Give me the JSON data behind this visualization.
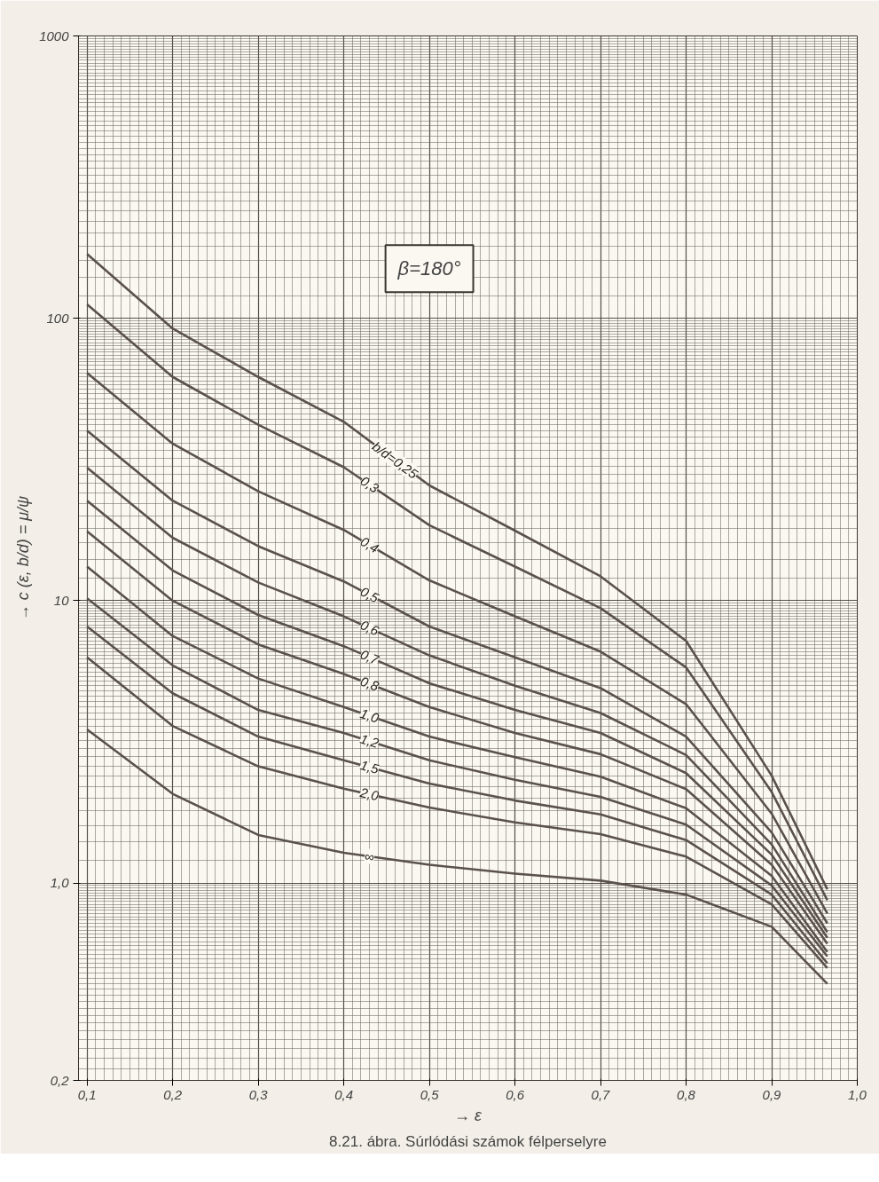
{
  "chart_data": {
    "type": "line",
    "xlabel": "→ ε",
    "ylabel": "→ c (ε, b/d) = μ/ψ",
    "log": "y",
    "grid": true,
    "x": [
      0.1,
      0.2,
      0.3,
      0.4,
      0.5,
      0.6,
      0.7,
      0.8,
      0.9,
      0.965
    ],
    "series": [
      {
        "name": "b/d=0,25",
        "color": "#5a524a",
        "values": [
          169,
          92,
          62,
          43,
          25.6,
          17.7,
          12.2,
          7.2,
          2.4,
          0.95
        ]
      },
      {
        "name": "0,3",
        "color": "#5a524a",
        "values": [
          112,
          62,
          42,
          29.7,
          18.5,
          13.2,
          9.4,
          5.8,
          2.1,
          0.87
        ]
      },
      {
        "name": "0,4",
        "color": "#5a524a",
        "values": [
          64,
          36,
          24.4,
          17.8,
          11.8,
          8.8,
          6.6,
          4.3,
          1.76,
          0.78
        ]
      },
      {
        "name": "0,5",
        "color": "#5a524a",
        "values": [
          40,
          22.6,
          15.6,
          11.7,
          8.1,
          6.3,
          4.9,
          3.3,
          1.51,
          0.72
        ]
      },
      {
        "name": "0,6",
        "color": "#5a524a",
        "values": [
          29.6,
          16.7,
          11.6,
          8.8,
          6.4,
          5.0,
          4.0,
          2.84,
          1.37,
          0.67
        ]
      },
      {
        "name": "0,7",
        "color": "#5a524a",
        "values": [
          22.6,
          12.8,
          8.9,
          6.9,
          5.1,
          4.1,
          3.4,
          2.45,
          1.26,
          0.64
        ]
      },
      {
        "name": "0,8",
        "color": "#5a524a",
        "values": [
          17.6,
          10.0,
          7.0,
          5.5,
          4.2,
          3.4,
          2.86,
          2.15,
          1.16,
          0.61
        ]
      },
      {
        "name": "1,0",
        "color": "#5a524a",
        "values": [
          13.2,
          7.5,
          5.3,
          4.2,
          3.3,
          2.79,
          2.38,
          1.84,
          1.06,
          0.57
        ]
      },
      {
        "name": "1,2",
        "color": "#5a524a",
        "values": [
          10.2,
          5.9,
          4.1,
          3.4,
          2.72,
          2.32,
          2.02,
          1.61,
          0.98,
          0.55
        ]
      },
      {
        "name": "1,5",
        "color": "#5a524a",
        "values": [
          8.1,
          4.7,
          3.3,
          2.72,
          2.25,
          1.96,
          1.75,
          1.42,
          0.91,
          0.52
        ]
      },
      {
        "name": "2,0",
        "color": "#5a524a",
        "values": [
          6.3,
          3.6,
          2.59,
          2.16,
          1.85,
          1.64,
          1.49,
          1.24,
          0.84,
          0.5
        ]
      },
      {
        "name": "∞",
        "color": "#5a524a",
        "values": [
          3.5,
          2.07,
          1.48,
          1.28,
          1.16,
          1.08,
          1.02,
          0.91,
          0.7,
          0.44
        ]
      }
    ],
    "xlim": [
      0.09,
      1.0
    ],
    "ylim": [
      0.2,
      1000
    ],
    "xticks": [
      {
        "value": 0.1,
        "label": "0,1"
      },
      {
        "value": 0.2,
        "label": "0,2"
      },
      {
        "value": 0.3,
        "label": "0,3"
      },
      {
        "value": 0.4,
        "label": "0,4"
      },
      {
        "value": 0.5,
        "label": "0,5"
      },
      {
        "value": 0.6,
        "label": "0,6"
      },
      {
        "value": 0.7,
        "label": "0,7"
      },
      {
        "value": 0.8,
        "label": "0,8"
      },
      {
        "value": 0.9,
        "label": "0,9"
      },
      {
        "value": 1.0,
        "label": "1,0"
      }
    ],
    "yticks": [
      {
        "value": 0.2,
        "label": "0,2"
      },
      {
        "value": 1,
        "label": "1,0"
      },
      10,
      100,
      1000
    ],
    "annotations": [
      "β=180°",
      "8.21. ábra. Súrlódási számok félperselyre"
    ]
  }
}
